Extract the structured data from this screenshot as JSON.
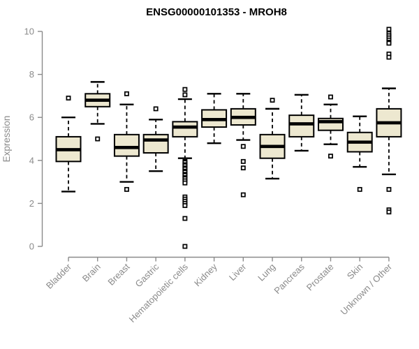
{
  "chart_data": {
    "type": "boxplot",
    "title": "ENSG00000101353 - MROH8",
    "xlabel": "",
    "ylabel": "Expression",
    "ylim": [
      0,
      10
    ],
    "y_ticks": [
      0,
      2,
      4,
      6,
      8,
      10
    ],
    "grid": false,
    "legend": "none",
    "categories": [
      "Bladder",
      "Brain",
      "Breast",
      "Gastric",
      "Hematopoietic cells",
      "Kidney",
      "Liver",
      "Lung",
      "Pancreas",
      "Prostate",
      "Skin",
      "Unknown / Other"
    ],
    "series": [
      {
        "category": "Bladder",
        "whisker_low": 2.55,
        "q1": 3.95,
        "median": 4.5,
        "q3": 5.1,
        "whisker_high": 6.0,
        "outliers": [
          6.9
        ]
      },
      {
        "category": "Brain",
        "whisker_low": 5.7,
        "q1": 6.5,
        "median": 6.8,
        "q3": 7.1,
        "whisker_high": 7.65,
        "outliers": [
          5.0
        ]
      },
      {
        "category": "Breast",
        "whisker_low": 3.0,
        "q1": 4.2,
        "median": 4.6,
        "q3": 5.2,
        "whisker_high": 6.6,
        "outliers": [
          7.1,
          2.65
        ]
      },
      {
        "category": "Gastric",
        "whisker_low": 3.5,
        "q1": 4.35,
        "median": 4.95,
        "q3": 5.2,
        "whisker_high": 5.9,
        "outliers": [
          6.4
        ]
      },
      {
        "category": "Hematopoietic cells",
        "whisker_low": 4.1,
        "q1": 5.1,
        "median": 5.55,
        "q3": 5.8,
        "whisker_high": 6.85,
        "outliers": [
          7.3,
          7.05,
          3.95,
          3.9,
          3.8,
          3.75,
          3.65,
          3.6,
          3.5,
          3.45,
          3.35,
          3.3,
          3.2,
          3.15,
          3.05,
          2.95,
          2.3,
          2.2,
          2.1,
          2.0,
          1.9,
          1.3,
          0.0
        ]
      },
      {
        "category": "Kidney",
        "whisker_low": 4.8,
        "q1": 5.55,
        "median": 5.9,
        "q3": 6.35,
        "whisker_high": 7.1,
        "outliers": []
      },
      {
        "category": "Liver",
        "whisker_low": 4.95,
        "q1": 5.65,
        "median": 6.0,
        "q3": 6.4,
        "whisker_high": 7.1,
        "outliers": [
          4.65,
          3.95,
          3.65,
          2.4
        ]
      },
      {
        "category": "Lung",
        "whisker_low": 3.15,
        "q1": 4.1,
        "median": 4.65,
        "q3": 5.2,
        "whisker_high": 6.4,
        "outliers": [
          6.8
        ]
      },
      {
        "category": "Pancreas",
        "whisker_low": 4.45,
        "q1": 5.1,
        "median": 5.7,
        "q3": 6.1,
        "whisker_high": 7.05,
        "outliers": []
      },
      {
        "category": "Prostate",
        "whisker_low": 4.75,
        "q1": 5.4,
        "median": 5.8,
        "q3": 5.95,
        "whisker_high": 6.6,
        "outliers": [
          6.95,
          4.2
        ]
      },
      {
        "category": "Skin",
        "whisker_low": 3.7,
        "q1": 4.4,
        "median": 4.85,
        "q3": 5.3,
        "whisker_high": 6.05,
        "outliers": [
          2.65
        ]
      },
      {
        "category": "Unknown / Other",
        "whisker_low": 3.35,
        "q1": 5.1,
        "median": 5.75,
        "q3": 6.4,
        "whisker_high": 7.35,
        "outliers": [
          10.1,
          9.9,
          9.8,
          9.7,
          9.6,
          9.5,
          9.45,
          8.95,
          8.8,
          2.65,
          1.7,
          1.6
        ]
      }
    ],
    "style": {
      "box_fill": "#ede8d0",
      "box_stroke": "#000000",
      "median_color": "#000000",
      "whisker_color": "#000000",
      "outlier_color": "#000000",
      "axis_color": "#8a8a8a",
      "label_color": "#8a8a8a",
      "title_color": "#000000",
      "background": "#ffffff"
    }
  }
}
